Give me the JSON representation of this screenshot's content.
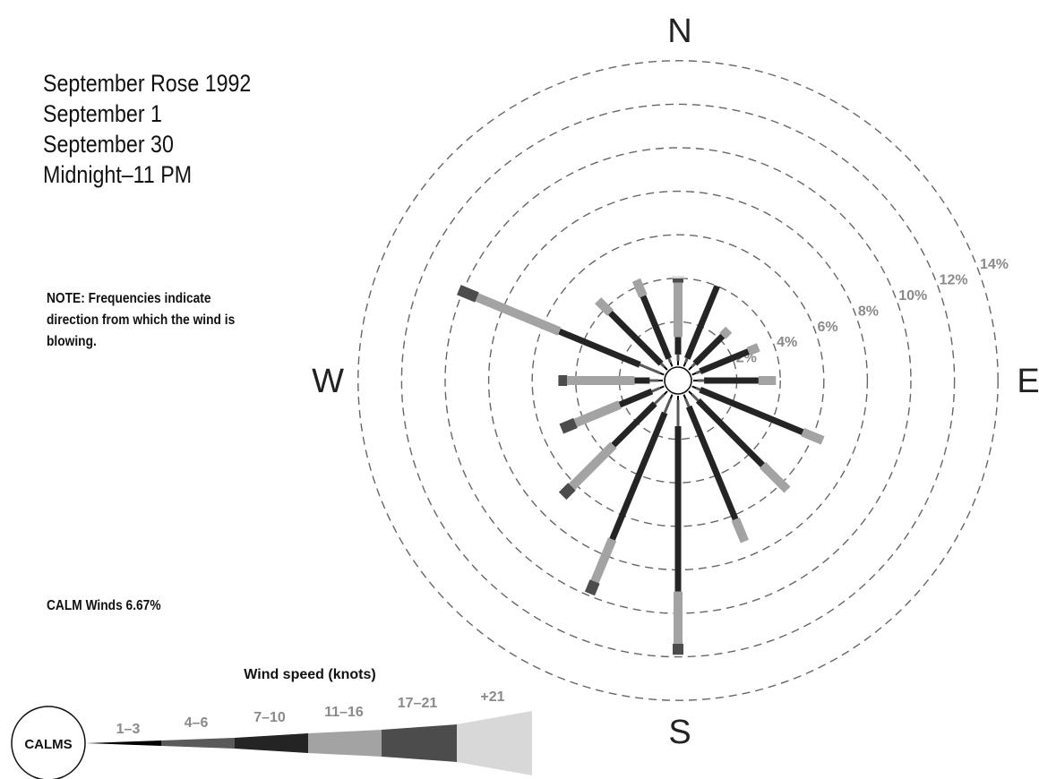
{
  "title_lines": [
    "September Rose 1992",
    "September 1",
    "September 30",
    "Midnight–11 PM"
  ],
  "note": "NOTE: Frequencies indicate direction from which the wind is blowing.",
  "calm_winds": "CALM Winds 6.67%",
  "chart_data": {
    "type": "wind-rose",
    "directions_deg": [
      0,
      22.5,
      45,
      67.5,
      90,
      112.5,
      135,
      157.5,
      180,
      202.5,
      225,
      247.5,
      270,
      292.5,
      315,
      337.5
    ],
    "direction_labels": {
      "N": "N",
      "E": "E",
      "S": "S",
      "W": "W"
    },
    "rings_percent": [
      2,
      4,
      6,
      8,
      10,
      12,
      14
    ],
    "ring_labels": [
      "2%",
      "4%",
      "6%",
      "8%",
      "10%",
      "12%",
      "14%"
    ],
    "rmax": 14,
    "calms_percent": 6.67,
    "speed_classes": [
      {
        "label": "1–3",
        "color": "#000000"
      },
      {
        "label": "4–6",
        "color": "#5a5a5a"
      },
      {
        "label": "7–10",
        "color": "#242424"
      },
      {
        "label": "11–16",
        "color": "#a3a3a3"
      },
      {
        "label": "17–21",
        "color": "#4c4c4c"
      },
      {
        "label": "+21",
        "color": "#d8d8d8"
      }
    ],
    "cumulative_percent": [
      [
        0.2,
        0.5,
        1.3,
        3.8,
        4.0,
        4.1
      ],
      [
        0.2,
        0.4,
        4.0,
        4.0,
        4.0,
        4.0
      ],
      [
        0.2,
        0.4,
        2.2,
        2.6,
        2.6,
        2.6
      ],
      [
        0.2,
        0.4,
        2.8,
        3.3,
        3.3,
        3.3
      ],
      [
        0.2,
        0.5,
        3.0,
        3.8,
        3.8,
        3.8
      ],
      [
        0.2,
        0.4,
        5.5,
        6.5,
        6.5,
        6.5
      ],
      [
        0.2,
        0.6,
        4.8,
        6.4,
        6.4,
        6.4
      ],
      [
        0.2,
        0.6,
        6.2,
        7.3,
        7.3,
        7.3
      ],
      [
        0.2,
        1.4,
        9.0,
        11.4,
        11.9,
        11.9
      ],
      [
        0.2,
        0.9,
        7.2,
        9.3,
        9.9,
        9.9
      ],
      [
        0.2,
        0.8,
        3.5,
        6.2,
        6.8,
        6.8
      ],
      [
        0.2,
        0.6,
        2.2,
        4.4,
        5.1,
        5.1
      ],
      [
        0.2,
        0.6,
        1.3,
        4.4,
        4.8,
        4.8
      ],
      [
        0.2,
        1.2,
        5.2,
        9.3,
        10.2,
        10.2
      ],
      [
        0.2,
        0.4,
        3.7,
        4.5,
        4.5,
        4.5
      ],
      [
        0.2,
        0.4,
        3.5,
        4.3,
        4.3,
        4.3
      ]
    ],
    "legend_title": "Wind speed (knots)",
    "legend_calms_label": "CALMS"
  }
}
